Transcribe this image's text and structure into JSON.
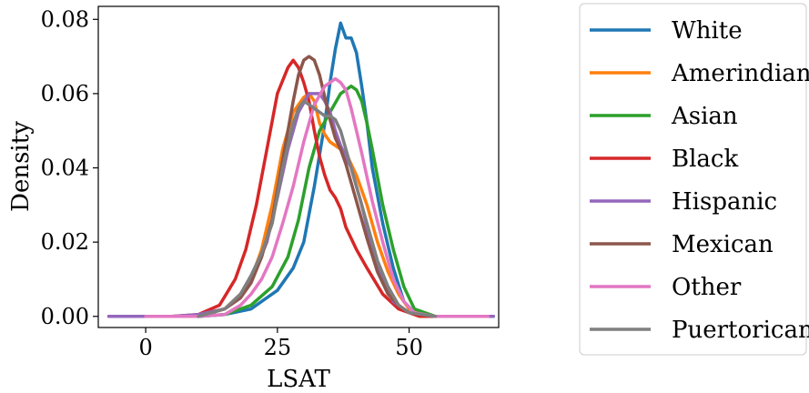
{
  "chart_data": {
    "type": "line",
    "title": "",
    "xlabel": "LSAT",
    "ylabel": "Density",
    "xlim": [
      -9,
      67
    ],
    "ylim": [
      -0.003,
      0.0835
    ],
    "xticks": [
      0,
      25,
      50
    ],
    "xtick_labels": [
      "0",
      "25",
      "50"
    ],
    "yticks": [
      0.0,
      0.02,
      0.04,
      0.06,
      0.08
    ],
    "ytick_labels": [
      "0.00",
      "0.02",
      "0.04",
      "0.06",
      "0.08"
    ],
    "grid": false,
    "legend_placement": "outside-right",
    "series": [
      {
        "name": "White",
        "color": "#1f77b4",
        "x": [
          10,
          15,
          20,
          25,
          28,
          30,
          32,
          34,
          35,
          36,
          37,
          38,
          39,
          40,
          41,
          42,
          43,
          45,
          47,
          49,
          51,
          55,
          60,
          66
        ],
        "y": [
          0,
          0.0005,
          0.002,
          0.007,
          0.013,
          0.02,
          0.035,
          0.052,
          0.063,
          0.072,
          0.079,
          0.075,
          0.075,
          0.071,
          0.062,
          0.052,
          0.04,
          0.025,
          0.013,
          0.004,
          0.001,
          0,
          0,
          0
        ]
      },
      {
        "name": "Amerindian",
        "color": "#ff7f0e",
        "x": [
          10,
          15,
          18,
          20,
          22,
          24,
          26,
          28,
          30,
          31,
          32,
          33,
          34,
          35,
          36,
          37,
          38,
          40,
          42,
          44,
          46,
          48,
          50,
          55,
          60
        ],
        "y": [
          0,
          0.002,
          0.006,
          0.01,
          0.018,
          0.03,
          0.045,
          0.055,
          0.059,
          0.06,
          0.058,
          0.052,
          0.049,
          0.047,
          0.046,
          0.045,
          0.044,
          0.038,
          0.03,
          0.02,
          0.012,
          0.006,
          0.002,
          0,
          0
        ]
      },
      {
        "name": "Asian",
        "color": "#2ca02c",
        "x": [
          10,
          15,
          20,
          24,
          27,
          29,
          31,
          33,
          35,
          37,
          39,
          40,
          41,
          42,
          43,
          45,
          47,
          49,
          51,
          55,
          60
        ],
        "y": [
          0,
          0.0005,
          0.003,
          0.008,
          0.016,
          0.026,
          0.04,
          0.05,
          0.055,
          0.06,
          0.062,
          0.061,
          0.058,
          0.052,
          0.045,
          0.03,
          0.018,
          0.008,
          0.002,
          0,
          0
        ]
      },
      {
        "name": "Black",
        "color": "#d62728",
        "x": [
          -7,
          5,
          10,
          14,
          17,
          19,
          21,
          23,
          25,
          27,
          28,
          29,
          30,
          31,
          32,
          33,
          34,
          35,
          36,
          37,
          38,
          40,
          42,
          45,
          48,
          52,
          55,
          62
        ],
        "y": [
          0,
          0,
          0.0005,
          0.003,
          0.01,
          0.018,
          0.03,
          0.045,
          0.06,
          0.067,
          0.069,
          0.067,
          0.063,
          0.058,
          0.05,
          0.043,
          0.038,
          0.034,
          0.032,
          0.029,
          0.024,
          0.018,
          0.013,
          0.006,
          0.002,
          0,
          0,
          0
        ]
      },
      {
        "name": "Hispanic",
        "color": "#9467bd",
        "x": [
          -7,
          5,
          10,
          15,
          18,
          20,
          23,
          25,
          27,
          29,
          31,
          33,
          34,
          35,
          36,
          37,
          39,
          41,
          43,
          45,
          47,
          50,
          55,
          66
        ],
        "y": [
          0,
          0,
          0.0005,
          0.002,
          0.005,
          0.01,
          0.02,
          0.032,
          0.045,
          0.055,
          0.06,
          0.06,
          0.058,
          0.055,
          0.05,
          0.046,
          0.04,
          0.03,
          0.018,
          0.01,
          0.004,
          0.001,
          0,
          0
        ]
      },
      {
        "name": "Mexican",
        "color": "#8c564b",
        "x": [
          10,
          15,
          18,
          20,
          22,
          24,
          26,
          28,
          29,
          30,
          31,
          32,
          33,
          34,
          35,
          36,
          37,
          38,
          40,
          42,
          44,
          46,
          48,
          50,
          55
        ],
        "y": [
          0,
          0.002,
          0.005,
          0.009,
          0.016,
          0.026,
          0.042,
          0.058,
          0.065,
          0.069,
          0.07,
          0.069,
          0.065,
          0.059,
          0.053,
          0.048,
          0.045,
          0.041,
          0.031,
          0.021,
          0.012,
          0.006,
          0.003,
          0.001,
          0
        ]
      },
      {
        "name": "Other",
        "color": "#e377c2",
        "x": [
          0,
          10,
          15,
          18,
          20,
          22,
          24,
          26,
          28,
          30,
          32,
          34,
          35,
          36,
          37,
          38,
          39,
          40,
          41,
          43,
          45,
          47,
          49,
          51,
          55,
          65
        ],
        "y": [
          0,
          0,
          0.0005,
          0.003,
          0.006,
          0.01,
          0.016,
          0.025,
          0.035,
          0.047,
          0.057,
          0.062,
          0.063,
          0.064,
          0.063,
          0.061,
          0.056,
          0.05,
          0.044,
          0.031,
          0.02,
          0.01,
          0.004,
          0.001,
          0,
          0
        ]
      },
      {
        "name": "Puertorican",
        "color": "#7f7f7f",
        "x": [
          10,
          15,
          18,
          20,
          22,
          24,
          26,
          28,
          29,
          30,
          31,
          32,
          33,
          34,
          35,
          36,
          37,
          38,
          40,
          42,
          44,
          46,
          48,
          50,
          55
        ],
        "y": [
          0,
          0.002,
          0.006,
          0.011,
          0.017,
          0.025,
          0.04,
          0.052,
          0.056,
          0.058,
          0.057,
          0.056,
          0.055,
          0.054,
          0.054,
          0.053,
          0.05,
          0.045,
          0.035,
          0.025,
          0.015,
          0.008,
          0.003,
          0.001,
          0
        ]
      }
    ]
  }
}
